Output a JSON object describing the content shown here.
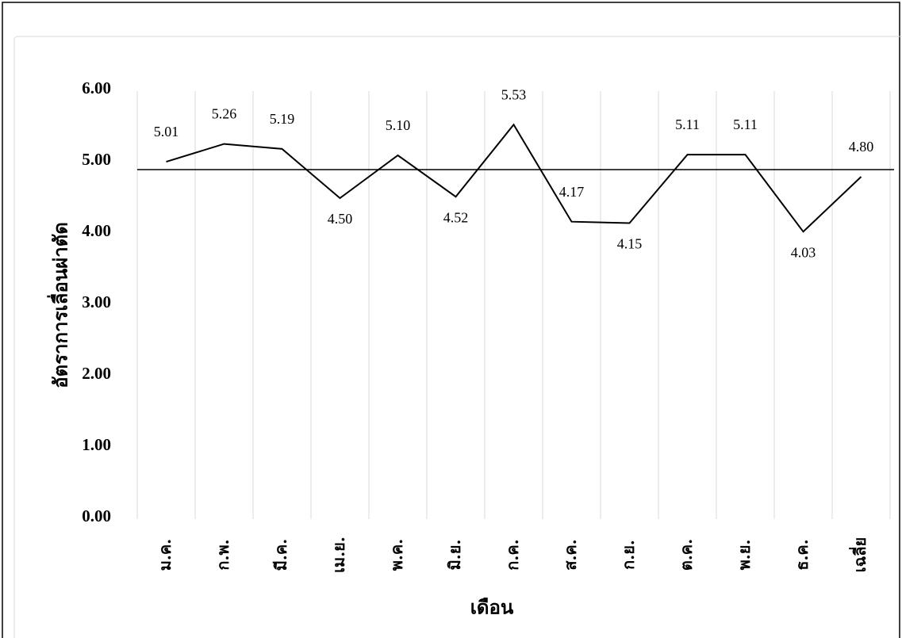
{
  "chart_data": {
    "type": "line",
    "x_label": "เดือน",
    "y_label": "อัตราการเลื่อนผ่าตัด",
    "categories": [
      "ม.ค.",
      "ก.พ.",
      "มี.ค.",
      "เม.ย.",
      "พ.ค.",
      "มิ.ย.",
      "ก.ค.",
      "ส.ค.",
      "ก.ย.",
      "ต.ค.",
      "พ.ย.",
      "ธ.ค.",
      "เฉลี่ย"
    ],
    "values": [
      5.01,
      5.26,
      5.19,
      4.5,
      5.1,
      4.52,
      5.53,
      4.17,
      4.15,
      5.11,
      5.11,
      4.03,
      4.8
    ],
    "value_labels": [
      "5.01",
      "5.26",
      "5.19",
      "4.50",
      "5.10",
      "4.52",
      "5.53",
      "4.17",
      "4.15",
      "5.11",
      "5.11",
      "4.03",
      "4.80"
    ],
    "color": "#000000",
    "reference_line": 4.9,
    "ylim": [
      0,
      6
    ],
    "yticks": [
      {
        "value": 0,
        "label": "0.00"
      },
      {
        "value": 1,
        "label": "1.00"
      },
      {
        "value": 2,
        "label": "2.00"
      },
      {
        "value": 3,
        "label": "3.00"
      },
      {
        "value": 4,
        "label": "4.00"
      },
      {
        "value": 5,
        "label": "5.00"
      },
      {
        "value": 6,
        "label": "6.00"
      }
    ],
    "grid": "vertical"
  }
}
